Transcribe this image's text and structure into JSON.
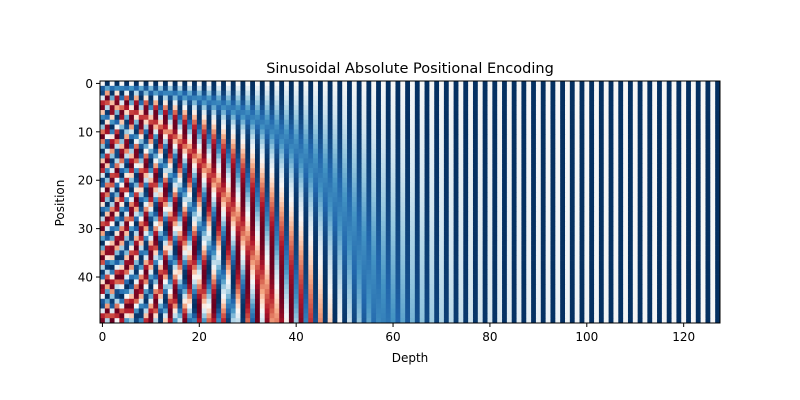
{
  "chart_data": {
    "type": "heatmap",
    "title": "Sinusoidal Absolute Positional Encoding",
    "xlabel": "Depth",
    "ylabel": "Position",
    "rows": 50,
    "columns": 128,
    "value_formula": "even depth i: sin(pos / 10000^(i/128)); odd depth i: cos(pos / 10000^((i-1)/128))",
    "value_range": [
      -1,
      1
    ],
    "colormap": "RdBu",
    "colormap_low_color": "#67001f",
    "colormap_high_color": "#053061",
    "x_ticks": [
      "0",
      "20",
      "40",
      "60",
      "80",
      "100",
      "120"
    ],
    "y_ticks": [
      "0",
      "10",
      "20",
      "30",
      "40"
    ],
    "y_inverted": true,
    "grid": false,
    "legend": "none"
  }
}
